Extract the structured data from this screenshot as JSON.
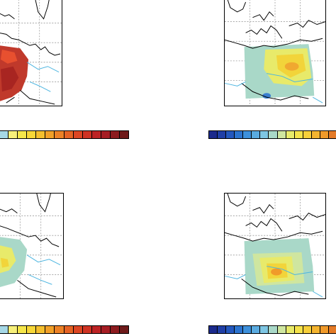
{
  "figure": {
    "panels": [
      {
        "id": "top-left",
        "field_colors": [
          "#c0392b",
          "#d63b2a",
          "#a82521",
          "#e8502f"
        ],
        "colorbar": [
          "#a6d8e6",
          "#f7f07a",
          "#f5e64a",
          "#f7d738",
          "#f4bf2e",
          "#f1a028",
          "#ec8126",
          "#e56324",
          "#dc4623",
          "#cf3323",
          "#bd2324",
          "#a61d24",
          "#8c1b1f",
          "#6e1a1a"
        ]
      },
      {
        "id": "top-right",
        "field_colors": [
          "#a9d8c8",
          "#e8ea6a",
          "#f2d43a",
          "#f0a830",
          "#3a7fd0"
        ],
        "colorbar": [
          "#1b2a8c",
          "#203fa6",
          "#2458be",
          "#2c74cf",
          "#3d90db",
          "#5aabe0",
          "#7ec6e3",
          "#a9d8c8",
          "#cfe6a0",
          "#e8ea6a",
          "#f5e24a",
          "#f7cf3a",
          "#f4b42f",
          "#f09a2a",
          "#e47a27"
        ]
      },
      {
        "id": "bottom-left",
        "field_colors": [
          "#a9d8c8",
          "#e8ea6a",
          "#f2d43a"
        ],
        "colorbar": [
          "#a6d8e6",
          "#f7f07a",
          "#f5e64a",
          "#f7d738",
          "#f4bf2e",
          "#f1a028",
          "#ec8126",
          "#e56324",
          "#dc4623",
          "#cf3323",
          "#bd2324",
          "#a61d24",
          "#8c1b1f",
          "#6e1a1a"
        ]
      },
      {
        "id": "bottom-right",
        "field_colors": [
          "#a9d8c8",
          "#cfe6a0",
          "#e8ea6a",
          "#f2d43a",
          "#f09a2a"
        ],
        "colorbar": [
          "#1b2a8c",
          "#203fa6",
          "#2458be",
          "#2c74cf",
          "#3d90db",
          "#5aabe0",
          "#7ec6e3",
          "#a9d8c8",
          "#cfe6a0",
          "#e8ea6a",
          "#f5e24a",
          "#f7cf3a",
          "#f4b42f",
          "#f09a2a",
          "#e47a27"
        ]
      }
    ],
    "style": {
      "coastline_color": "#000000",
      "river_color": "#4db5e0",
      "grid_color": "#9a9a9a"
    }
  }
}
